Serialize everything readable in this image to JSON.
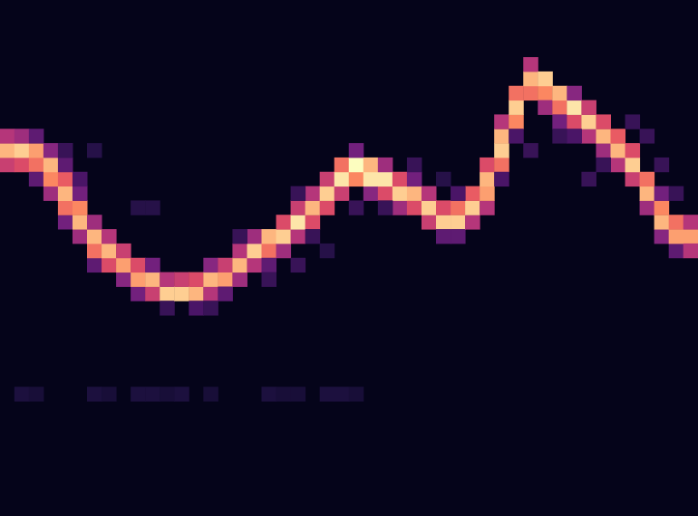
{
  "chart_data": {
    "type": "heatmap",
    "columns": 48,
    "rows": 36,
    "color_range": [
      0,
      1
    ],
    "grid": false,
    "tick_labels": false,
    "cells": [
      [
        0,
        24,
        0.55
      ],
      [
        0,
        25,
        0.85
      ],
      [
        0,
        26,
        0.5
      ],
      [
        1,
        24,
        0.6
      ],
      [
        1,
        25,
        0.9
      ],
      [
        1,
        26,
        0.45
      ],
      [
        2,
        24,
        0.7
      ],
      [
        2,
        25,
        0.8
      ],
      [
        2,
        26,
        0.3
      ],
      [
        2,
        23,
        0.3
      ],
      [
        3,
        22,
        0.45
      ],
      [
        3,
        23,
        0.75
      ],
      [
        3,
        24,
        0.85
      ],
      [
        3,
        25,
        0.4
      ],
      [
        4,
        20,
        0.35
      ],
      [
        4,
        21,
        0.7
      ],
      [
        4,
        22,
        0.85
      ],
      [
        4,
        23,
        0.65
      ],
      [
        4,
        24,
        0.3
      ],
      [
        5,
        19,
        0.45
      ],
      [
        5,
        20,
        0.85
      ],
      [
        5,
        21,
        0.75
      ],
      [
        5,
        22,
        0.35
      ],
      [
        6,
        17,
        0.3
      ],
      [
        6,
        18,
        0.7
      ],
      [
        6,
        19,
        0.85
      ],
      [
        6,
        20,
        0.45
      ],
      [
        7,
        17,
        0.6
      ],
      [
        7,
        18,
        0.85
      ],
      [
        7,
        19,
        0.5
      ],
      [
        8,
        16,
        0.4
      ],
      [
        8,
        17,
        0.8
      ],
      [
        8,
        18,
        0.55
      ],
      [
        9,
        15,
        0.35
      ],
      [
        9,
        16,
        0.8
      ],
      [
        9,
        17,
        0.6
      ],
      [
        10,
        15,
        0.55
      ],
      [
        10,
        16,
        0.85
      ],
      [
        10,
        17,
        0.35
      ],
      [
        11,
        15,
        0.9
      ],
      [
        11,
        16,
        0.5
      ],
      [
        11,
        14,
        0.2
      ],
      [
        12,
        15,
        0.9
      ],
      [
        12,
        16,
        0.55
      ],
      [
        13,
        15,
        0.85
      ],
      [
        13,
        16,
        0.6
      ],
      [
        14,
        15,
        0.5
      ],
      [
        14,
        16,
        0.85
      ],
      [
        14,
        17,
        0.4
      ],
      [
        15,
        16,
        0.8
      ],
      [
        15,
        17,
        0.55
      ],
      [
        15,
        15,
        0.3
      ],
      [
        16,
        16,
        0.45
      ],
      [
        16,
        17,
        0.85
      ],
      [
        16,
        18,
        0.5
      ],
      [
        17,
        17,
        0.5
      ],
      [
        17,
        18,
        0.9
      ],
      [
        17,
        19,
        0.45
      ],
      [
        18,
        18,
        0.7
      ],
      [
        18,
        19,
        0.85
      ],
      [
        18,
        17,
        0.3
      ],
      [
        19,
        18,
        0.45
      ],
      [
        19,
        19,
        0.9
      ],
      [
        19,
        20,
        0.6
      ],
      [
        20,
        19,
        0.5
      ],
      [
        20,
        20,
        0.95
      ],
      [
        20,
        21,
        0.55
      ],
      [
        21,
        20,
        0.6
      ],
      [
        21,
        21,
        0.85
      ],
      [
        21,
        22,
        0.5
      ],
      [
        22,
        21,
        0.6
      ],
      [
        22,
        22,
        0.9
      ],
      [
        22,
        23,
        0.55
      ],
      [
        23,
        22,
        0.55
      ],
      [
        23,
        23,
        0.95
      ],
      [
        23,
        24,
        0.7
      ],
      [
        24,
        23,
        0.75
      ],
      [
        24,
        24,
        1.0
      ],
      [
        24,
        25,
        0.35
      ],
      [
        25,
        22,
        0.4
      ],
      [
        25,
        23,
        0.95
      ],
      [
        25,
        24,
        0.85
      ],
      [
        26,
        22,
        0.6
      ],
      [
        26,
        23,
        0.95
      ],
      [
        26,
        24,
        0.45
      ],
      [
        27,
        21,
        0.45
      ],
      [
        27,
        22,
        0.9
      ],
      [
        27,
        23,
        0.6
      ],
      [
        28,
        21,
        0.6
      ],
      [
        28,
        22,
        0.85
      ],
      [
        28,
        23,
        0.35
      ],
      [
        29,
        20,
        0.55
      ],
      [
        29,
        21,
        0.9
      ],
      [
        29,
        22,
        0.5
      ],
      [
        30,
        20,
        0.9
      ],
      [
        30,
        21,
        0.6
      ],
      [
        30,
        19,
        0.3
      ],
      [
        31,
        20,
        0.9
      ],
      [
        31,
        21,
        0.7
      ],
      [
        31,
        19,
        0.3
      ],
      [
        32,
        20,
        0.5
      ],
      [
        32,
        21,
        0.9
      ],
      [
        32,
        22,
        0.65
      ],
      [
        33,
        21,
        0.5
      ],
      [
        33,
        22,
        0.8
      ],
      [
        33,
        23,
        0.85
      ],
      [
        33,
        24,
        0.6
      ],
      [
        34,
        24,
        0.7
      ],
      [
        34,
        25,
        0.9
      ],
      [
        34,
        26,
        0.85
      ],
      [
        34,
        27,
        0.5
      ],
      [
        35,
        27,
        0.75
      ],
      [
        35,
        28,
        0.9
      ],
      [
        35,
        29,
        0.7
      ],
      [
        36,
        29,
        0.7
      ],
      [
        36,
        30,
        0.85
      ],
      [
        36,
        31,
        0.5
      ],
      [
        37,
        29,
        0.75
      ],
      [
        37,
        30,
        0.9
      ],
      [
        37,
        28,
        0.45
      ],
      [
        38,
        28,
        0.7
      ],
      [
        38,
        29,
        0.85
      ],
      [
        38,
        27,
        0.35
      ],
      [
        39,
        27,
        0.6
      ],
      [
        39,
        28,
        0.95
      ],
      [
        39,
        29,
        0.4
      ],
      [
        40,
        26,
        0.5
      ],
      [
        40,
        27,
        0.9
      ],
      [
        40,
        28,
        0.55
      ],
      [
        41,
        25,
        0.45
      ],
      [
        41,
        26,
        0.85
      ],
      [
        41,
        27,
        0.6
      ],
      [
        42,
        24,
        0.5
      ],
      [
        42,
        25,
        0.85
      ],
      [
        42,
        26,
        0.65
      ],
      [
        43,
        23,
        0.55
      ],
      [
        43,
        24,
        0.9
      ],
      [
        43,
        25,
        0.6
      ],
      [
        44,
        21,
        0.45
      ],
      [
        44,
        22,
        0.85
      ],
      [
        44,
        23,
        0.7
      ],
      [
        45,
        19,
        0.4
      ],
      [
        45,
        20,
        0.85
      ],
      [
        45,
        21,
        0.75
      ],
      [
        45,
        22,
        0.35
      ],
      [
        46,
        18,
        0.3
      ],
      [
        46,
        19,
        0.8
      ],
      [
        46,
        20,
        0.7
      ],
      [
        47,
        19,
        0.8
      ],
      [
        47,
        18,
        0.5
      ],
      [
        47,
        20,
        0.5
      ],
      [
        4,
        25,
        0.2
      ],
      [
        5,
        23,
        0.25
      ],
      [
        6,
        25,
        0.15
      ],
      [
        9,
        21,
        0.15
      ],
      [
        10,
        21,
        0.15
      ],
      [
        16,
        19,
        0.2
      ],
      [
        20,
        22,
        0.2
      ],
      [
        21,
        19,
        0.2
      ],
      [
        22,
        18,
        0.15
      ],
      [
        24,
        21,
        0.2
      ],
      [
        26,
        21,
        0.2
      ],
      [
        28,
        24,
        0.2
      ],
      [
        30,
        23,
        0.15
      ],
      [
        31,
        22,
        0.25
      ],
      [
        34,
        23,
        0.25
      ],
      [
        35,
        26,
        0.25
      ],
      [
        36,
        25,
        0.2
      ],
      [
        38,
        26,
        0.2
      ],
      [
        39,
        26,
        0.25
      ],
      [
        41,
        24,
        0.2
      ],
      [
        43,
        27,
        0.2
      ],
      [
        44,
        26,
        0.2
      ],
      [
        45,
        24,
        0.2
      ],
      [
        46,
        22,
        0.2
      ],
      [
        40,
        23,
        0.2
      ],
      [
        20,
        17,
        0.2
      ],
      [
        18,
        16,
        0.2
      ],
      [
        13,
        14,
        0.25
      ],
      [
        14,
        14,
        0.2
      ],
      [
        1,
        8,
        0.12
      ],
      [
        2,
        8,
        0.1
      ],
      [
        6,
        8,
        0.12
      ],
      [
        7,
        8,
        0.1
      ],
      [
        9,
        8,
        0.12
      ],
      [
        10,
        8,
        0.12
      ],
      [
        11,
        8,
        0.1
      ],
      [
        12,
        8,
        0.12
      ],
      [
        14,
        8,
        0.1
      ],
      [
        18,
        8,
        0.12
      ],
      [
        19,
        8,
        0.1
      ],
      [
        20,
        8,
        0.1
      ],
      [
        22,
        8,
        0.12
      ],
      [
        23,
        8,
        0.12
      ],
      [
        24,
        8,
        0.1
      ]
    ]
  }
}
